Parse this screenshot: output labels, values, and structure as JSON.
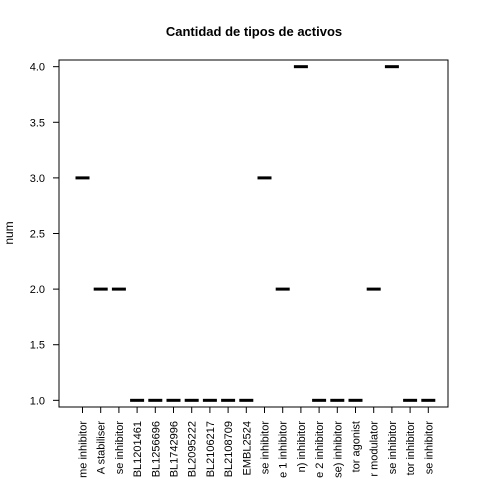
{
  "chart_data": {
    "type": "scatter",
    "title": "Cantidad de tipos de activos",
    "xlabel": "",
    "ylabel": "num",
    "ylim": [
      0.94,
      4.06
    ],
    "yticks": [
      "1.0",
      "1.5",
      "2.0",
      "2.5",
      "3.0",
      "3.5",
      "4.0"
    ],
    "grid": false,
    "categories": [
      "me inhibitor",
      "A stabiliser",
      "se inhibitor",
      "BL1201461",
      "BL1256696",
      "BL1742996",
      "BL2095222",
      "BL2106217",
      "BL2108709",
      "EMBL2524",
      "se inhibitor",
      "e 1 inhibitor",
      "n) inhibitor",
      "e 2 inhibitor",
      "se) inhibitor",
      "tor agonist",
      "r modulator",
      "se inhibitor",
      "tor inhibitor",
      "se inhibitor"
    ],
    "values": [
      3,
      2,
      2,
      1,
      1,
      1,
      1,
      1,
      1,
      1,
      3,
      2,
      4,
      1,
      1,
      1,
      2,
      4,
      1,
      1
    ]
  }
}
